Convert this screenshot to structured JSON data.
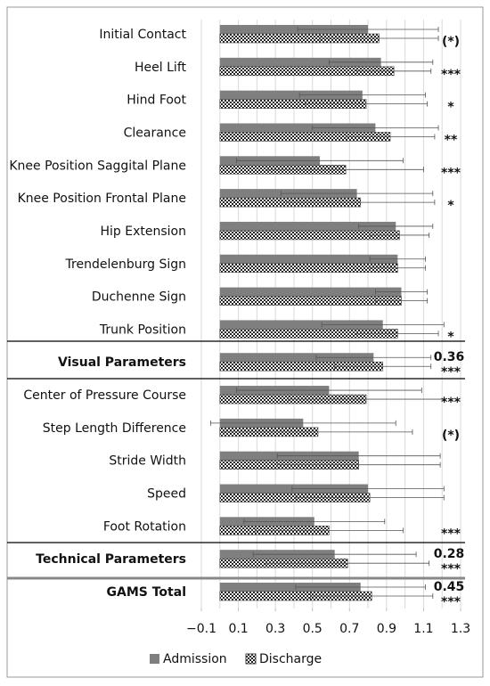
{
  "chart_data": {
    "type": "bar",
    "orientation": "horizontal",
    "categories": [
      "Initial Contact",
      "Heel Lift",
      "Hind Foot",
      "Clearance",
      "Knee Position Saggital Plane",
      "Knee Position Frontal Plane",
      "Hip Extension",
      "Trendelenburg Sign",
      "Duchenne Sign",
      "Trunk Position",
      "Visual Parameters",
      "Center of Pressure Course",
      "Step Length Difference",
      "Stride Width",
      "Speed",
      "Foot Rotation",
      "Technical Parameters",
      "GAMS Total"
    ],
    "summary_rows": [
      10,
      16,
      17
    ],
    "series": [
      {
        "name": "Admission",
        "color": "#7f7f7f",
        "pattern": "solid",
        "values": [
          0.8,
          0.87,
          0.77,
          0.84,
          0.54,
          0.74,
          0.95,
          0.96,
          0.98,
          0.88,
          0.83,
          0.59,
          0.45,
          0.75,
          0.8,
          0.51,
          0.62,
          0.76
        ],
        "errors": [
          0.38,
          0.28,
          0.34,
          0.34,
          0.45,
          0.41,
          0.2,
          0.15,
          0.14,
          0.33,
          0.31,
          0.5,
          0.5,
          0.44,
          0.41,
          0.38,
          0.44,
          0.35
        ]
      },
      {
        "name": "Discharge",
        "color": "#222222",
        "pattern": "hatch",
        "values": [
          0.86,
          0.94,
          0.79,
          0.92,
          0.68,
          0.76,
          0.97,
          0.96,
          0.98,
          0.96,
          0.88,
          0.79,
          0.53,
          0.75,
          0.81,
          0.59,
          0.69,
          0.82
        ],
        "errors": [
          0.32,
          0.2,
          0.33,
          0.24,
          0.42,
          0.4,
          0.16,
          0.15,
          0.14,
          0.22,
          0.26,
          0.42,
          0.51,
          0.44,
          0.4,
          0.4,
          0.44,
          0.33
        ]
      }
    ],
    "significance": [
      "(*)",
      "***",
      "*",
      "**",
      "***",
      "*",
      null,
      null,
      null,
      "*",
      "***",
      "***",
      "(*)",
      null,
      null,
      "***",
      "***",
      "***"
    ],
    "effect_sizes": [
      null,
      null,
      null,
      null,
      null,
      null,
      null,
      null,
      null,
      null,
      0.36,
      null,
      null,
      null,
      null,
      null,
      0.28,
      0.45
    ],
    "xlim": [
      -0.1,
      1.3
    ],
    "xticks": [
      {
        "value": -0.1,
        "label": "−0.1"
      },
      0.1,
      0.3,
      0.5,
      0.7,
      0.9,
      1.1,
      1.3
    ],
    "grid_values": [
      -0.1,
      0,
      0.1,
      0.2,
      0.3,
      0.4,
      0.5,
      0.6,
      0.7,
      0.8,
      0.9,
      1.0,
      1.1,
      1.2,
      1.3
    ],
    "legend": "bottom"
  }
}
